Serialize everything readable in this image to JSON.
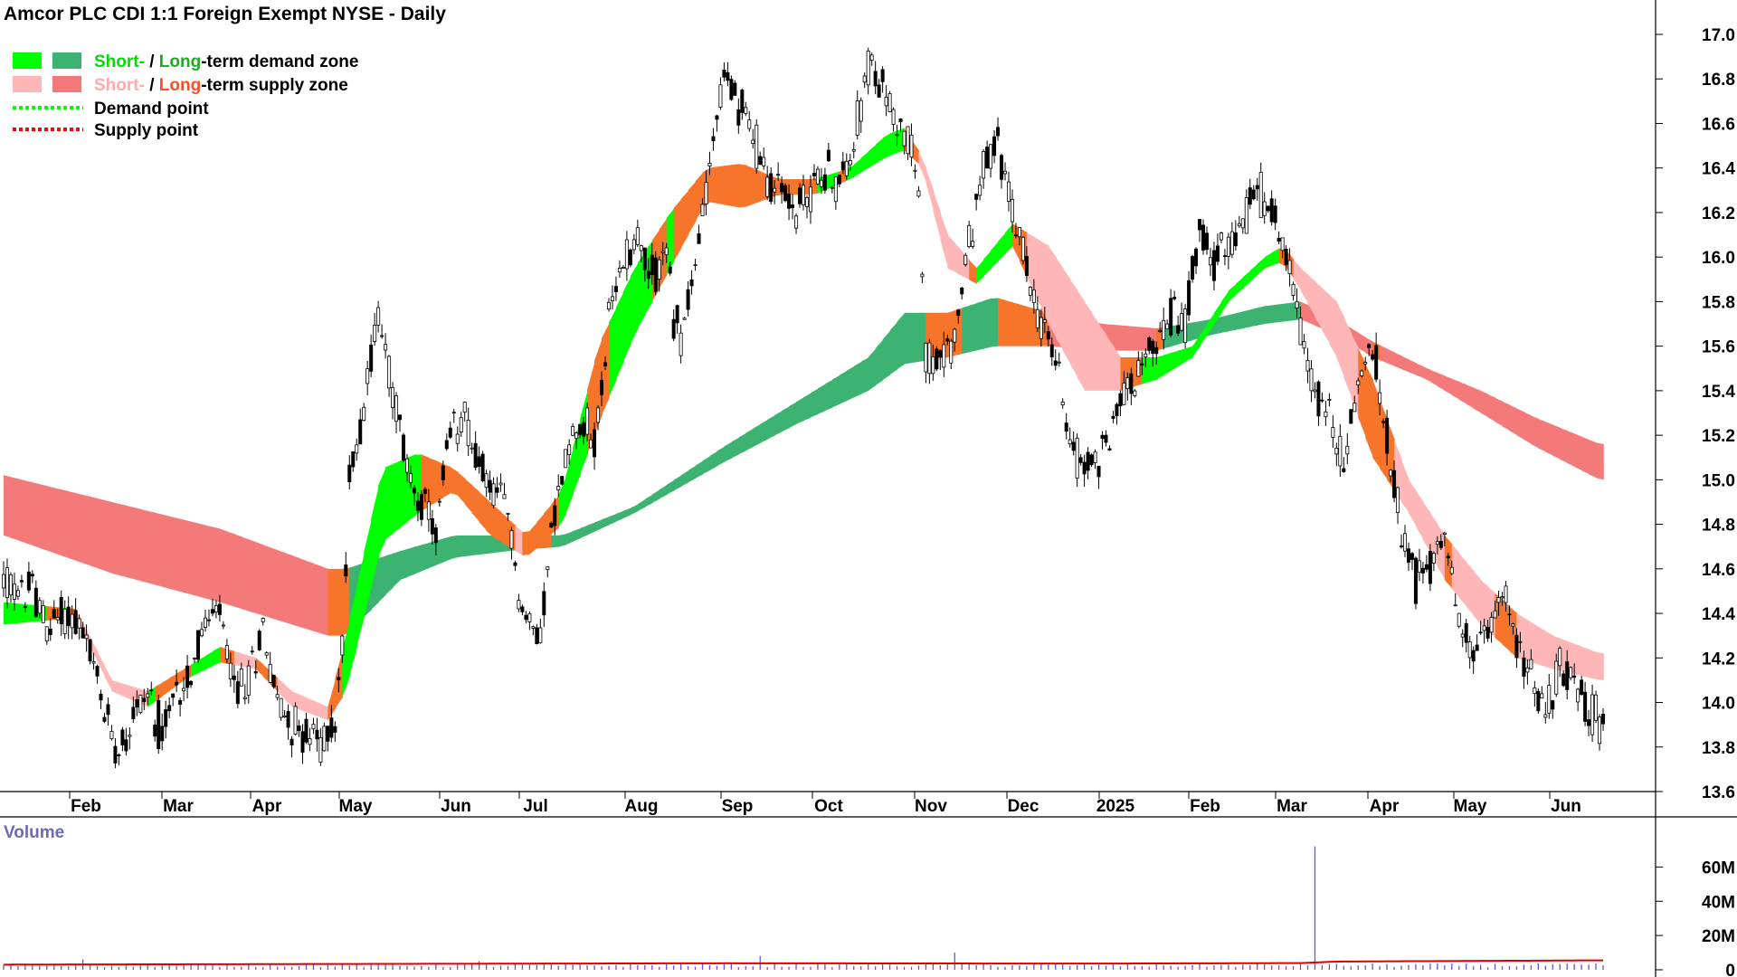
{
  "chart_data": {
    "type": "candlestick",
    "title": "Amcor PLC CDI 1:1 Foreign Exempt NYSE - Daily",
    "legend": [
      {
        "key": "demand-zone",
        "short_label": "Short-",
        "sep": " / ",
        "long_label": "Long",
        "rest": "-term demand zone",
        "short_color": "#00ff00",
        "long_color": "#3cb371",
        "short_text_color": "#00dd00",
        "long_text_color": "#22aa22"
      },
      {
        "key": "supply-zone",
        "short_label": "Short-",
        "sep": " / ",
        "long_label": "Long",
        "rest": "-term supply zone",
        "short_color": "#ffb6b6",
        "long_color": "#f47a7a",
        "short_text_color": "#ffaaaa",
        "long_text_color": "#ff4d2a"
      },
      {
        "key": "demand-point",
        "label": "Demand point",
        "color": "#00ff00"
      },
      {
        "key": "supply-point",
        "label": "Supply point",
        "color": "#ff0000"
      }
    ],
    "x_labels": [
      "Feb",
      "Mar",
      "Apr",
      "May",
      "Jun",
      "Jul",
      "Aug",
      "Sep",
      "Oct",
      "Nov",
      "Dec",
      "2025",
      "Feb",
      "Mar",
      "Apr",
      "May",
      "Jun"
    ],
    "y_ticks": [
      "17.0",
      "16.8",
      "16.6",
      "16.4",
      "16.2",
      "16.0",
      "15.8",
      "15.6",
      "15.4",
      "15.2",
      "15.0",
      "14.8",
      "14.6",
      "14.4",
      "14.2",
      "14.0",
      "13.8",
      "13.6"
    ],
    "y_range": [
      13.6,
      17.0
    ],
    "price_keypoints": [
      [
        0,
        14.55
      ],
      [
        4,
        14.48
      ],
      [
        8,
        14.52
      ],
      [
        12,
        14.32
      ],
      [
        16,
        14.4
      ],
      [
        20,
        14.38
      ],
      [
        24,
        14.22
      ],
      [
        28,
        13.95
      ],
      [
        32,
        13.8
      ],
      [
        36,
        13.95
      ],
      [
        40,
        14.05
      ],
      [
        44,
        13.85
      ],
      [
        48,
        14.05
      ],
      [
        52,
        14.15
      ],
      [
        56,
        14.35
      ],
      [
        60,
        14.4
      ],
      [
        64,
        14.05
      ],
      [
        68,
        14.1
      ],
      [
        72,
        14.35
      ],
      [
        76,
        14.0
      ],
      [
        80,
        13.9
      ],
      [
        84,
        13.85
      ],
      [
        88,
        13.82
      ],
      [
        92,
        13.9
      ],
      [
        94,
        14.25
      ],
      [
        96,
        15.0
      ],
      [
        100,
        15.35
      ],
      [
        104,
        15.75
      ],
      [
        108,
        15.4
      ],
      [
        112,
        15.05
      ],
      [
        116,
        14.9
      ],
      [
        120,
        14.75
      ],
      [
        124,
        15.2
      ],
      [
        128,
        15.3
      ],
      [
        132,
        15.05
      ],
      [
        136,
        14.95
      ],
      [
        140,
        14.85
      ],
      [
        144,
        14.4
      ],
      [
        148,
        14.3
      ],
      [
        150,
        14.45
      ],
      [
        152,
        14.75
      ],
      [
        156,
        15.1
      ],
      [
        160,
        15.3
      ],
      [
        164,
        15.15
      ],
      [
        168,
        15.7
      ],
      [
        172,
        16.0
      ],
      [
        176,
        16.1
      ],
      [
        180,
        15.9
      ],
      [
        184,
        16.05
      ],
      [
        186,
        15.7
      ],
      [
        188,
        15.65
      ],
      [
        192,
        15.95
      ],
      [
        196,
        16.45
      ],
      [
        200,
        16.8
      ],
      [
        204,
        16.7
      ],
      [
        208,
        16.55
      ],
      [
        212,
        16.35
      ],
      [
        216,
        16.3
      ],
      [
        220,
        16.2
      ],
      [
        224,
        16.3
      ],
      [
        228,
        16.4
      ],
      [
        232,
        16.3
      ],
      [
        236,
        16.55
      ],
      [
        240,
        16.85
      ],
      [
        244,
        16.75
      ],
      [
        248,
        16.6
      ],
      [
        252,
        16.5
      ],
      [
        254,
        16.3
      ],
      [
        256,
        15.55
      ],
      [
        260,
        15.5
      ],
      [
        264,
        15.65
      ],
      [
        268,
        16.05
      ],
      [
        272,
        16.4
      ],
      [
        276,
        16.5
      ],
      [
        280,
        16.2
      ],
      [
        284,
        15.95
      ],
      [
        288,
        15.7
      ],
      [
        292,
        15.55
      ],
      [
        296,
        15.2
      ],
      [
        300,
        15.05
      ],
      [
        304,
        15.1
      ],
      [
        308,
        15.25
      ],
      [
        312,
        15.45
      ],
      [
        316,
        15.5
      ],
      [
        320,
        15.6
      ],
      [
        324,
        15.75
      ],
      [
        328,
        15.7
      ],
      [
        332,
        16.2
      ],
      [
        336,
        15.95
      ],
      [
        340,
        16.05
      ],
      [
        344,
        16.15
      ],
      [
        348,
        16.3
      ],
      [
        352,
        16.2
      ],
      [
        356,
        16.05
      ],
      [
        360,
        15.65
      ],
      [
        364,
        15.4
      ],
      [
        368,
        15.3
      ],
      [
        372,
        15.05
      ],
      [
        376,
        15.45
      ],
      [
        380,
        15.6
      ],
      [
        384,
        15.2
      ],
      [
        388,
        14.8
      ],
      [
        392,
        14.55
      ],
      [
        396,
        14.6
      ],
      [
        400,
        14.8
      ],
      [
        404,
        14.35
      ],
      [
        408,
        14.2
      ],
      [
        412,
        14.3
      ],
      [
        416,
        14.55
      ],
      [
        420,
        14.25
      ],
      [
        424,
        14.1
      ],
      [
        428,
        13.95
      ],
      [
        432,
        14.2
      ],
      [
        436,
        14.05
      ],
      [
        440,
        14.0
      ],
      [
        443,
        13.9
      ]
    ],
    "short_term_zone": {
      "top": [
        [
          0,
          14.45
        ],
        [
          20,
          14.42
        ],
        [
          30,
          14.1
        ],
        [
          40,
          14.05
        ],
        [
          50,
          14.15
        ],
        [
          60,
          14.25
        ],
        [
          70,
          14.2
        ],
        [
          80,
          14.05
        ],
        [
          90,
          13.98
        ],
        [
          95,
          14.3
        ],
        [
          105,
          15.05
        ],
        [
          115,
          15.12
        ],
        [
          125,
          15.05
        ],
        [
          135,
          14.9
        ],
        [
          145,
          14.75
        ],
        [
          155,
          14.95
        ],
        [
          165,
          15.6
        ],
        [
          175,
          15.95
        ],
        [
          185,
          16.2
        ],
        [
          195,
          16.4
        ],
        [
          205,
          16.42
        ],
        [
          215,
          16.35
        ],
        [
          225,
          16.35
        ],
        [
          235,
          16.4
        ],
        [
          245,
          16.55
        ],
        [
          250,
          16.58
        ],
        [
          255,
          16.45
        ],
        [
          262,
          16.1
        ],
        [
          270,
          15.95
        ],
        [
          280,
          16.15
        ],
        [
          290,
          16.05
        ],
        [
          300,
          15.8
        ],
        [
          310,
          15.55
        ],
        [
          320,
          15.55
        ],
        [
          330,
          15.6
        ],
        [
          340,
          15.85
        ],
        [
          350,
          16.0
        ],
        [
          355,
          16.05
        ],
        [
          360,
          15.95
        ],
        [
          370,
          15.8
        ],
        [
          380,
          15.45
        ],
        [
          390,
          15.0
        ],
        [
          400,
          14.75
        ],
        [
          410,
          14.55
        ],
        [
          420,
          14.4
        ],
        [
          430,
          14.3
        ],
        [
          443,
          14.22
        ]
      ],
      "bottom": [
        [
          0,
          14.35
        ],
        [
          20,
          14.38
        ],
        [
          30,
          14.05
        ],
        [
          40,
          13.98
        ],
        [
          50,
          14.1
        ],
        [
          60,
          14.18
        ],
        [
          70,
          14.15
        ],
        [
          80,
          13.98
        ],
        [
          90,
          13.92
        ],
        [
          95,
          14.05
        ],
        [
          105,
          14.72
        ],
        [
          115,
          14.85
        ],
        [
          125,
          14.95
        ],
        [
          135,
          14.75
        ],
        [
          145,
          14.65
        ],
        [
          155,
          14.8
        ],
        [
          165,
          15.25
        ],
        [
          175,
          15.65
        ],
        [
          185,
          15.95
        ],
        [
          195,
          16.25
        ],
        [
          205,
          16.22
        ],
        [
          215,
          16.28
        ],
        [
          225,
          16.28
        ],
        [
          235,
          16.35
        ],
        [
          245,
          16.45
        ],
        [
          250,
          16.48
        ],
        [
          255,
          16.4
        ],
        [
          262,
          15.95
        ],
        [
          270,
          15.88
        ],
        [
          280,
          16.05
        ],
        [
          290,
          15.7
        ],
        [
          300,
          15.4
        ],
        [
          310,
          15.4
        ],
        [
          320,
          15.45
        ],
        [
          330,
          15.55
        ],
        [
          340,
          15.8
        ],
        [
          350,
          15.95
        ],
        [
          355,
          15.98
        ],
        [
          360,
          15.85
        ],
        [
          370,
          15.55
        ],
        [
          380,
          15.1
        ],
        [
          390,
          14.85
        ],
        [
          400,
          14.55
        ],
        [
          410,
          14.35
        ],
        [
          420,
          14.2
        ],
        [
          430,
          14.15
        ],
        [
          443,
          14.1
        ]
      ]
    },
    "long_term_zone": {
      "top": [
        [
          0,
          15.02
        ],
        [
          30,
          14.9
        ],
        [
          60,
          14.78
        ],
        [
          90,
          14.6
        ],
        [
          95,
          14.6
        ],
        [
          110,
          14.68
        ],
        [
          125,
          14.75
        ],
        [
          140,
          14.75
        ],
        [
          155,
          14.75
        ],
        [
          175,
          14.88
        ],
        [
          200,
          15.15
        ],
        [
          220,
          15.35
        ],
        [
          240,
          15.55
        ],
        [
          250,
          15.75
        ],
        [
          262,
          15.75
        ],
        [
          275,
          15.82
        ],
        [
          290,
          15.75
        ],
        [
          305,
          15.7
        ],
        [
          320,
          15.68
        ],
        [
          335,
          15.72
        ],
        [
          350,
          15.78
        ],
        [
          360,
          15.8
        ],
        [
          370,
          15.72
        ],
        [
          380,
          15.62
        ],
        [
          395,
          15.5
        ],
        [
          410,
          15.4
        ],
        [
          425,
          15.28
        ],
        [
          443,
          15.16
        ]
      ],
      "bottom": [
        [
          0,
          14.75
        ],
        [
          30,
          14.58
        ],
        [
          60,
          14.45
        ],
        [
          90,
          14.3
        ],
        [
          95,
          14.3
        ],
        [
          110,
          14.55
        ],
        [
          125,
          14.65
        ],
        [
          140,
          14.68
        ],
        [
          155,
          14.7
        ],
        [
          175,
          14.85
        ],
        [
          200,
          15.08
        ],
        [
          220,
          15.25
        ],
        [
          240,
          15.4
        ],
        [
          250,
          15.52
        ],
        [
          262,
          15.55
        ],
        [
          275,
          15.6
        ],
        [
          290,
          15.6
        ],
        [
          305,
          15.58
        ],
        [
          320,
          15.58
        ],
        [
          335,
          15.65
        ],
        [
          350,
          15.7
        ],
        [
          360,
          15.72
        ],
        [
          370,
          15.65
        ],
        [
          380,
          15.55
        ],
        [
          395,
          15.45
        ],
        [
          410,
          15.3
        ],
        [
          425,
          15.15
        ],
        [
          443,
          15.0
        ]
      ]
    },
    "volume": {
      "title": "Volume",
      "y_ticks": [
        "60M",
        "40M",
        "20M",
        "0"
      ],
      "y_range": [
        0,
        75
      ],
      "baseline_level": 1.5,
      "spikes": [
        [
          22,
          6
        ],
        [
          133,
          5
        ],
        [
          211,
          8
        ],
        [
          264,
          10
        ],
        [
          365,
          72
        ]
      ],
      "avg_series": [
        [
          0,
          3.0
        ],
        [
          100,
          3.4
        ],
        [
          200,
          3.8
        ],
        [
          300,
          3.6
        ],
        [
          360,
          3.9
        ],
        [
          370,
          4.8
        ],
        [
          443,
          5.5
        ]
      ]
    }
  }
}
